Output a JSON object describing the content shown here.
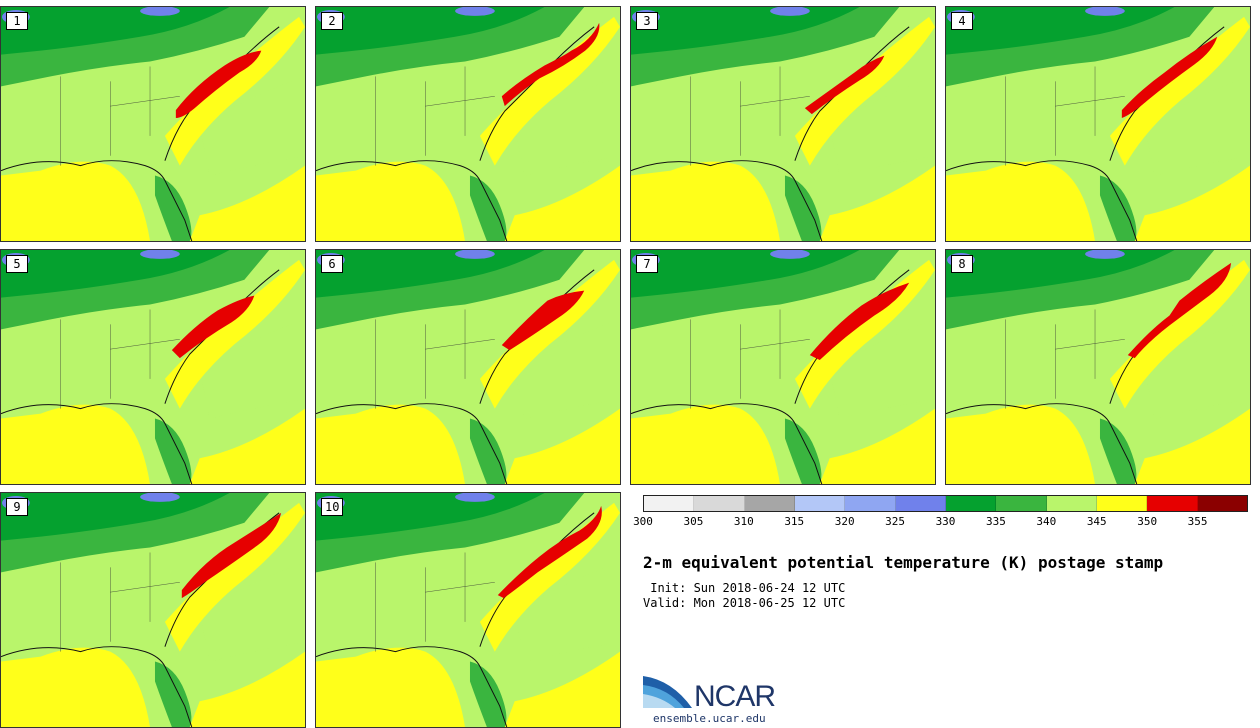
{
  "panels": [
    {
      "label": "1"
    },
    {
      "label": "2"
    },
    {
      "label": "3"
    },
    {
      "label": "4"
    },
    {
      "label": "5"
    },
    {
      "label": "6"
    },
    {
      "label": "7"
    },
    {
      "label": "8"
    },
    {
      "label": "9"
    },
    {
      "label": "10"
    }
  ],
  "colorbar": {
    "ticks": [
      "300",
      "305",
      "310",
      "315",
      "320",
      "325",
      "330",
      "335",
      "340",
      "345",
      "350",
      "355"
    ],
    "colors": [
      "#f2f2f2",
      "#d9d9d9",
      "#a6a6a6",
      "#b3c7f7",
      "#8fa6f2",
      "#7081eb",
      "#05a12f",
      "#3ab53f",
      "#b9f56b",
      "#ffff1a",
      "#e60000",
      "#8b0000"
    ]
  },
  "title": "2-m equivalent potential temperature (K) postage stamp",
  "init": " Init: Sun 2018-06-24 12 UTC",
  "valid": "Valid: Mon 2018-06-25 12 UTC",
  "logo": {
    "name": "NCAR",
    "url": "ensemble.ucar.edu"
  }
}
